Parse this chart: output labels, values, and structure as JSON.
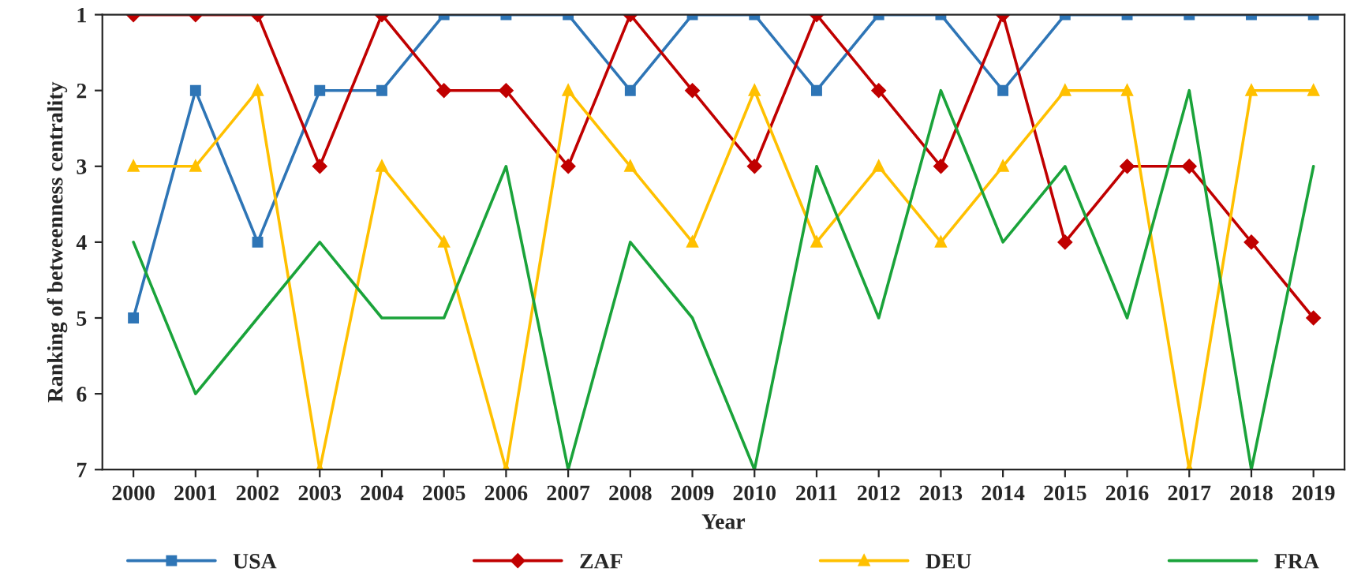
{
  "chart_data": {
    "type": "line",
    "xlabel": "Year",
    "ylabel": "Ranking of betweenness centrality",
    "categories": [
      "2000",
      "2001",
      "2002",
      "2003",
      "2004",
      "2005",
      "2006",
      "2007",
      "2008",
      "2009",
      "2010",
      "2011",
      "2012",
      "2013",
      "2014",
      "2015",
      "2016",
      "2017",
      "2018",
      "2019"
    ],
    "series": [
      {
        "name": "USA",
        "color": "#2e75b6",
        "marker": "square",
        "values": [
          5,
          2,
          4,
          2,
          2,
          1,
          1,
          1,
          2,
          1,
          1,
          2,
          1,
          1,
          2,
          1,
          1,
          1,
          1,
          1
        ]
      },
      {
        "name": "ZAF",
        "color": "#c00000",
        "marker": "diamond",
        "values": [
          1,
          1,
          1,
          3,
          1,
          2,
          2,
          3,
          1,
          2,
          3,
          1,
          2,
          3,
          1,
          4,
          3,
          3,
          4,
          5
        ]
      },
      {
        "name": "DEU",
        "color": "#ffc000",
        "marker": "triangle",
        "values": [
          3,
          3,
          2,
          7,
          3,
          4,
          7,
          2,
          3,
          4,
          2,
          4,
          3,
          4,
          3,
          2,
          2,
          7,
          2,
          2
        ]
      },
      {
        "name": "FRA",
        "color": "#1aa33a",
        "marker": "none",
        "values": [
          4,
          6,
          5,
          4,
          5,
          5,
          3,
          7,
          4,
          5,
          7,
          3,
          5,
          2,
          4,
          3,
          5,
          2,
          7,
          3
        ]
      }
    ],
    "ylim": [
      7,
      1
    ],
    "yticks": [
      1,
      2,
      3,
      4,
      5,
      6,
      7
    ],
    "grid": false,
    "legend": "bottom",
    "line_style": "solid"
  }
}
